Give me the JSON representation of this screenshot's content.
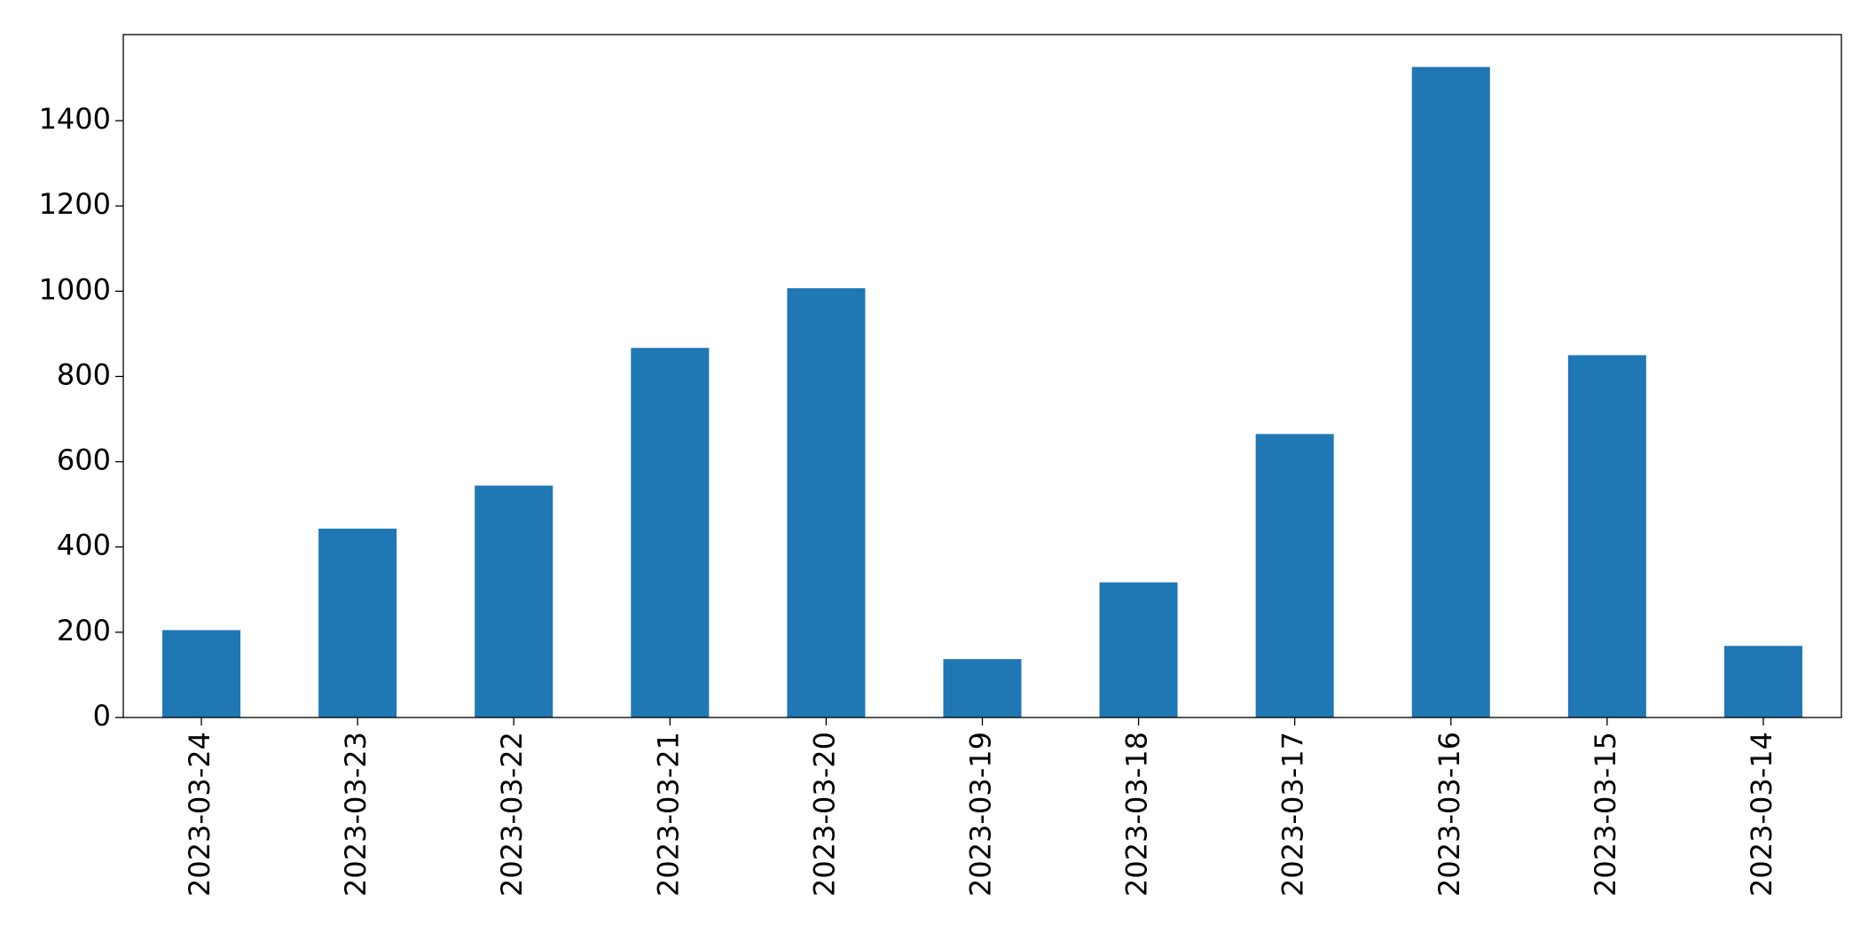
{
  "chart_data": {
    "type": "bar",
    "categories": [
      "2023-03-24",
      "2023-03-23",
      "2023-03-22",
      "2023-03-21",
      "2023-03-20",
      "2023-03-19",
      "2023-03-18",
      "2023-03-17",
      "2023-03-16",
      "2023-03-15",
      "2023-03-14"
    ],
    "values": [
      205,
      443,
      544,
      867,
      1007,
      137,
      317,
      665,
      1526,
      850,
      168
    ],
    "color": "#1f77b4",
    "ylim": [
      0,
      1602
    ],
    "yticks": [
      0,
      200,
      400,
      600,
      800,
      1000,
      1200,
      1400
    ],
    "grid": false
  }
}
